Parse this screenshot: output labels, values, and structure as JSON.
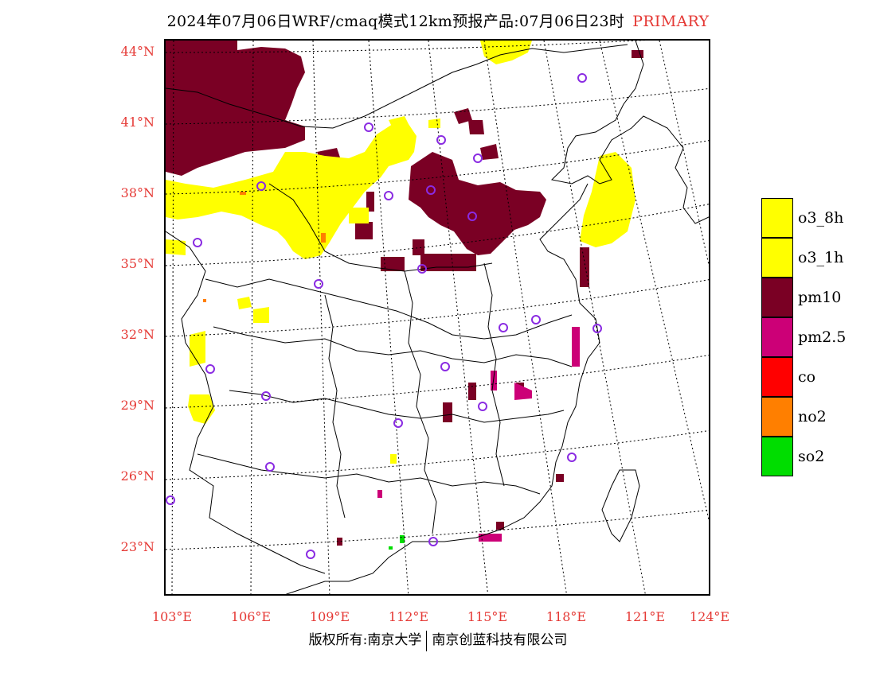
{
  "title": {
    "main": "2024年07月06日WRF/cmaq模式12km预报产品:07月06日23时",
    "tag": "PRIMARY"
  },
  "lat_labels": [
    "44°N",
    "41°N",
    "38°N",
    "35°N",
    "32°N",
    "29°N",
    "26°N",
    "23°N"
  ],
  "lon_labels": [
    "103°E",
    "106°E",
    "109°E",
    "112°E",
    "115°E",
    "118°E",
    "121°E",
    "124°E"
  ],
  "legend": [
    {
      "label": "o3_8h",
      "color": "#ffff00"
    },
    {
      "label": "o3_1h",
      "color": "#ffff00"
    },
    {
      "label": "pm10",
      "color": "#7a0024"
    },
    {
      "label": "pm2.5",
      "color": "#cc0077"
    },
    {
      "label": "co",
      "color": "#ff0000"
    },
    {
      "label": "no2",
      "color": "#ff7f00"
    },
    {
      "label": "so2",
      "color": "#00dd00"
    }
  ],
  "colors": {
    "o3": "#ffff00",
    "pm10": "#7a0024",
    "pm25": "#cc0077",
    "no2": "#ff7f00",
    "so2": "#00dd00",
    "station": "#8a2be2",
    "grid_label": "#e53935"
  },
  "copyright": {
    "left": "版权所有:南京大学",
    "right": "南京创蓝科技有限公司"
  }
}
